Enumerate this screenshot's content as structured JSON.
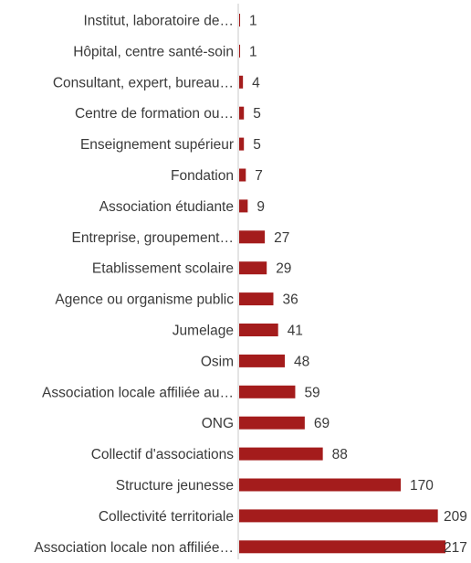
{
  "chart_data": {
    "type": "bar",
    "orientation": "horizontal",
    "title": "",
    "xlabel": "",
    "ylabel": "",
    "categories": [
      "Institut, laboratoire de…",
      "Hôpital, centre santé-soin",
      "Consultant, expert, bureau…",
      "Centre de formation ou…",
      "Enseignement supérieur",
      "Fondation",
      "Association étudiante",
      "Entreprise, groupement…",
      "Etablissement scolaire",
      "Agence ou organisme public",
      "Jumelage",
      "Osim",
      "Association locale affiliée au…",
      "ONG",
      "Collectif d'associations",
      "Structure jeunesse",
      "Collectivité territoriale",
      "Association locale non affiliée…"
    ],
    "values": [
      1,
      1,
      4,
      5,
      5,
      7,
      9,
      27,
      29,
      36,
      41,
      48,
      59,
      69,
      88,
      170,
      209,
      217
    ],
    "xlim": [
      0,
      217
    ],
    "grid": false,
    "legend": "none",
    "bar_color": "#a41c1c",
    "axis_color": "#c8c8c8"
  }
}
